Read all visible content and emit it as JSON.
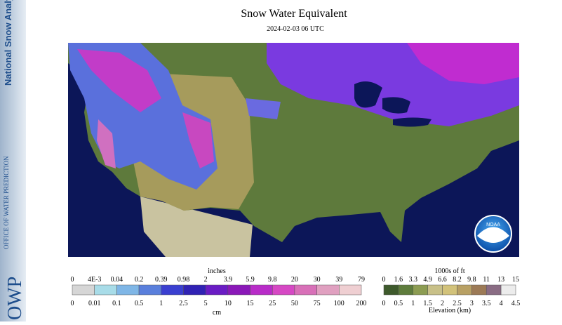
{
  "sidebar": {
    "product": "National Snow Analysis",
    "office": "OFFICE OF WATER PREDICTION",
    "logo": "OWP"
  },
  "header": {
    "title": "Snow Water Equivalent",
    "date": "2024-02-03 06 UTC"
  },
  "map": {
    "logo": "NOAA"
  },
  "swe_legend": {
    "top_unit": "inches",
    "top_labels": [
      "0",
      "4E-3",
      "0.04",
      "0.2",
      "0.39",
      "0.98",
      "2",
      "3.9",
      "5.9",
      "9.8",
      "20",
      "30",
      "39",
      "79"
    ],
    "bottom_labels": [
      "0",
      "0.01",
      "0.1",
      "0.5",
      "1",
      "2.5",
      "5",
      "10",
      "15",
      "25",
      "50",
      "75",
      "100",
      "200"
    ],
    "bottom_unit": "cm",
    "colors": [
      "#d6d6d6",
      "#a8dce8",
      "#7fb6e6",
      "#5a7fdc",
      "#3a3fd0",
      "#3022b4",
      "#6a1cc4",
      "#8a18b8",
      "#b82cc8",
      "#d648c4",
      "#d870b8",
      "#e0a0c0",
      "#efcfd2"
    ]
  },
  "elevation_legend": {
    "top_unit": "1000s of ft",
    "top_labels": [
      "0",
      "1.6",
      "3.3",
      "4.9",
      "6.6",
      "8.2",
      "9.8",
      "11",
      "13",
      "15"
    ],
    "bottom_labels": [
      "0",
      "0.5",
      "1",
      "1.5",
      "2",
      "2.5",
      "3",
      "3.5",
      "4",
      "4.5"
    ],
    "bottom_unit": "Elevation (km)",
    "colors": [
      "#3e5a2c",
      "#5e7c3c",
      "#8c9c52",
      "#c8c088",
      "#d2c27a",
      "#b8a064",
      "#9c7a56",
      "#8a6c84",
      "#ececec"
    ]
  }
}
